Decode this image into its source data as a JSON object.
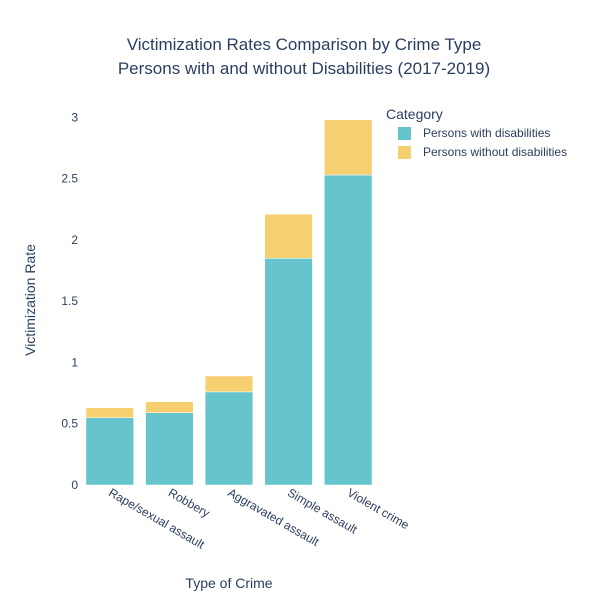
{
  "chart_data": {
    "type": "bar",
    "stacked": true,
    "title": "Victimization Rates Comparison by Crime Type",
    "subtitle": "Persons with and without Disabilities (2017-2019)",
    "xlabel": "Type of Crime",
    "ylabel": "Victimization Rate",
    "legend_title": "Category",
    "legend_position": "top-right",
    "categories": [
      "Rape/sexual assault",
      "Robbery",
      "Aggravated assault",
      "Simple assault",
      "Violent crime"
    ],
    "series": [
      {
        "name": "Persons with disabilities",
        "values": [
          0.55,
          0.59,
          0.76,
          1.85,
          2.53
        ],
        "color": "#66c5cc"
      },
      {
        "name": "Persons without disabilities",
        "values": [
          0.08,
          0.09,
          0.13,
          0.36,
          0.45
        ],
        "color": "#f6cf71"
      }
    ],
    "ylim": [
      0,
      3.15
    ],
    "yticks": [
      "0",
      "0.5",
      "1",
      "1.5",
      "2",
      "2.5",
      "3"
    ],
    "grid": false,
    "text_color": "#2a3f5f"
  }
}
